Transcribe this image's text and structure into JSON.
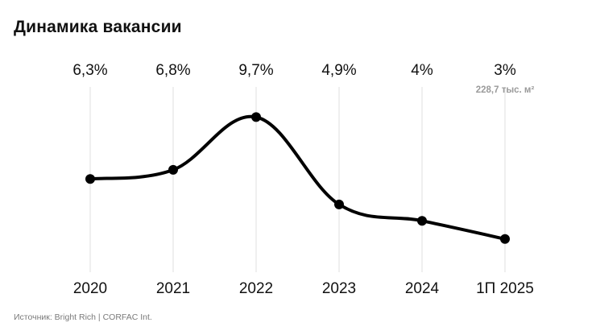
{
  "title": "Динамика вакансии",
  "source": "Источник: Bright Rich | CORFAC Int.",
  "chart_data": {
    "type": "line",
    "title": "Динамика вакансии",
    "categories": [
      "2020",
      "2021",
      "2022",
      "2023",
      "2024",
      "1П 2025"
    ],
    "series": [
      {
        "values": [
          6.3,
          6.8,
          9.7,
          4.9,
          4.0,
          3.0
        ],
        "labels": [
          "6,3%",
          "6,8%",
          "9,7%",
          "4,9%",
          "4%",
          "3%"
        ],
        "color": "#000000"
      }
    ],
    "annotations": [
      {
        "category": "1П 2025",
        "text": "228,7 тыс. м²"
      }
    ],
    "ylim": [
      0,
      10
    ],
    "grid": "vertical",
    "gridline_color": "#e6e6e6",
    "legend": "none"
  }
}
